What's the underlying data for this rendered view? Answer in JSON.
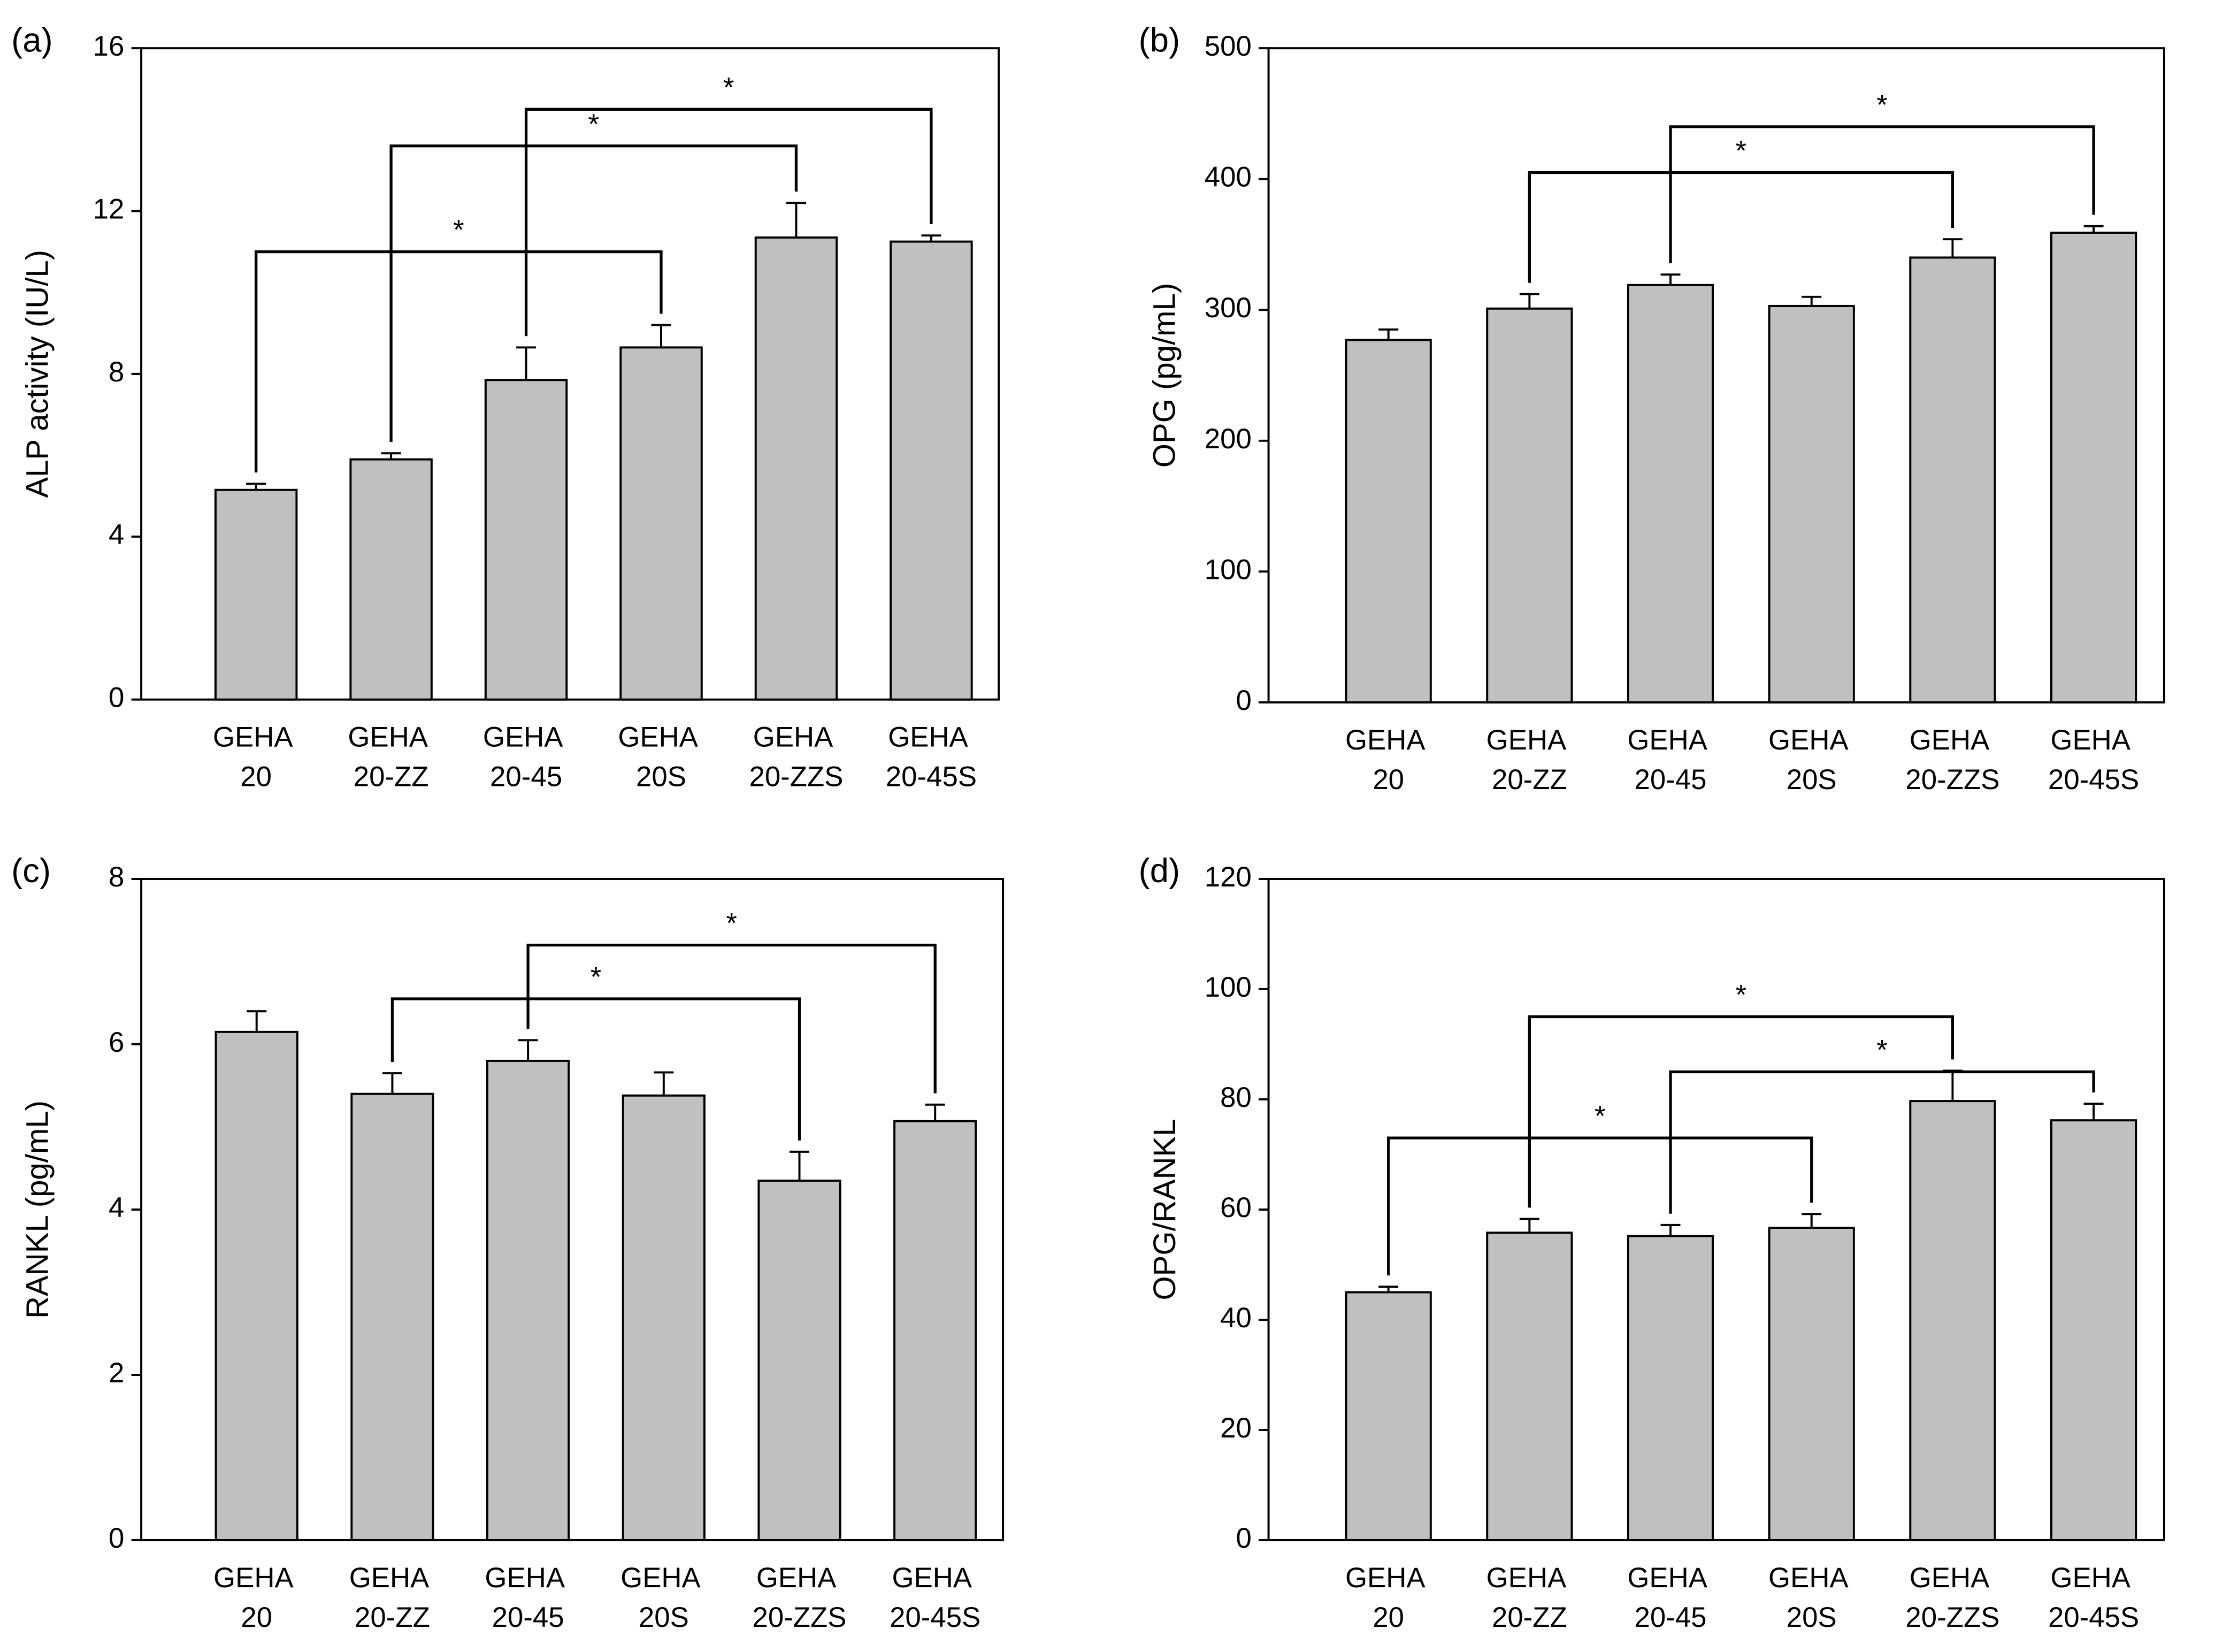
{
  "chart_data": [
    {
      "type": "bar",
      "panel_label": "(a)",
      "y_label": "ALP activity (IU/L)",
      "categories": [
        "GEHA 20",
        "GEHA 20-ZZ",
        "GEHA 20-45",
        "GEHA 20S",
        "GEHA 20-ZZS",
        "GEHA 20-45S"
      ],
      "values": [
        5.15,
        5.9,
        7.85,
        8.65,
        11.35,
        11.25
      ],
      "errors": [
        0.15,
        0.15,
        0.8,
        0.55,
        0.85,
        0.15
      ],
      "color": "#c0c0c0",
      "ylim": [
        0,
        16
      ],
      "yticks": [
        0,
        4,
        8,
        12,
        16
      ],
      "brackets": [
        {
          "from": 0,
          "to": 3,
          "y": 11,
          "label": "*"
        },
        {
          "from": 1,
          "to": 4,
          "y": 13.6,
          "label": "*"
        },
        {
          "from": 2,
          "to": 5,
          "y": 14.5,
          "label": "*"
        }
      ]
    },
    {
      "type": "bar",
      "panel_label": "(b)",
      "y_label": "OPG (pg/mL)",
      "categories": [
        "GEHA 20",
        "GEHA 20-ZZ",
        "GEHA 20-45",
        "GEHA 20S",
        "GEHA 20-ZZS",
        "GEHA 20-45S"
      ],
      "values": [
        277,
        301,
        319,
        303,
        340,
        359
      ],
      "errors": [
        8,
        11,
        8,
        7,
        14,
        5
      ],
      "color": "#c0c0c0",
      "ylim": [
        0,
        500
      ],
      "yticks": [
        0,
        100,
        200,
        300,
        400,
        500
      ],
      "brackets": [
        {
          "from": 1,
          "to": 4,
          "y": 405,
          "label": "*"
        },
        {
          "from": 2,
          "to": 5,
          "y": 440,
          "label": "*"
        }
      ]
    },
    {
      "type": "bar",
      "panel_label": "(c)",
      "y_label": "RANKL (pg/mL)",
      "categories": [
        "GEHA 20",
        "GEHA 20-ZZ",
        "GEHA 20-45",
        "GEHA 20S",
        "GEHA 20-ZZS",
        "GEHA 20-45S"
      ],
      "values": [
        6.15,
        5.4,
        5.8,
        5.38,
        4.35,
        5.07
      ],
      "errors": [
        0.25,
        0.25,
        0.25,
        0.28,
        0.35,
        0.2
      ],
      "color": "#c0c0c0",
      "ylim": [
        0,
        8
      ],
      "yticks": [
        0,
        2,
        4,
        6,
        8
      ],
      "brackets": [
        {
          "from": 1,
          "to": 4,
          "y": 6.55,
          "label": "*"
        },
        {
          "from": 2,
          "to": 5,
          "y": 7.2,
          "label": "*"
        }
      ]
    },
    {
      "type": "bar",
      "panel_label": "(d)",
      "y_label": "OPG/RANKL",
      "categories": [
        "GEHA 20",
        "GEHA 20-ZZ",
        "GEHA 20-45",
        "GEHA 20S",
        "GEHA 20-ZZS",
        "GEHA 20-45S"
      ],
      "values": [
        45,
        55.8,
        55.2,
        56.7,
        79.7,
        76.2
      ],
      "errors": [
        1,
        2.5,
        2,
        2.5,
        5.5,
        3
      ],
      "color": "#c0c0c0",
      "ylim": [
        0,
        120
      ],
      "yticks": [
        0,
        20,
        40,
        60,
        80,
        100,
        120
      ],
      "brackets": [
        {
          "from": 0,
          "to": 3,
          "y": 73,
          "label": "*"
        },
        {
          "from": 1,
          "to": 4,
          "y": 95,
          "label": "*"
        },
        {
          "from": 2,
          "to": 5,
          "y": 85,
          "label": "*"
        }
      ]
    }
  ]
}
